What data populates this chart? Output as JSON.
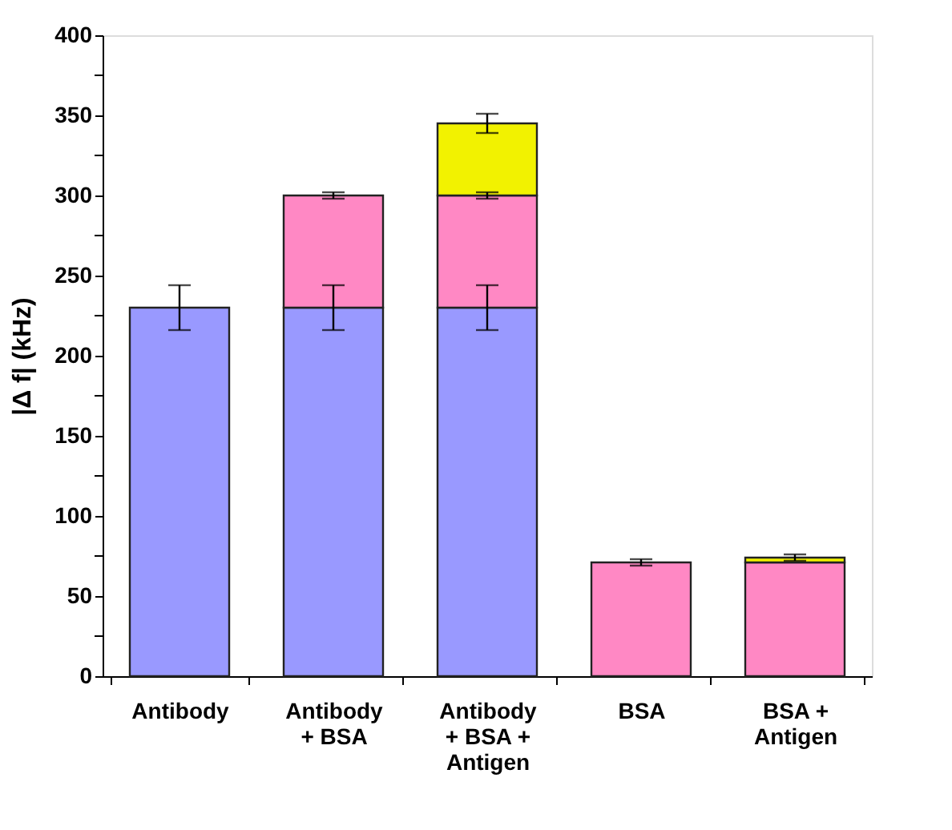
{
  "chart_data": {
    "type": "bar",
    "stacked": true,
    "ylabel": "|Δ f| (kHz)",
    "categories": [
      "Antibody",
      "Antibody\n+ BSA",
      "Antibody\n+ BSA +\nAntigen",
      "BSA",
      "BSA +\nAntigen"
    ],
    "series": [
      {
        "color": "#9999ff",
        "values": [
          230,
          230,
          230,
          null,
          null
        ],
        "errors": [
          14,
          14,
          14,
          null,
          null
        ]
      },
      {
        "color": "#ff88c4",
        "values": [
          null,
          70,
          70,
          71,
          71
        ],
        "errors": [
          null,
          2,
          2,
          2,
          null
        ]
      },
      {
        "color": "#f2f200",
        "values": [
          null,
          null,
          45,
          null,
          3
        ],
        "errors": [
          null,
          null,
          6,
          null,
          2
        ]
      }
    ],
    "ylim": [
      0,
      400
    ],
    "yticks": [
      0,
      {
        "value": 25,
        "label": null
      },
      50,
      {
        "value": 75,
        "label": null
      },
      100,
      {
        "value": 125,
        "label": null
      },
      150,
      {
        "value": 175,
        "label": null
      },
      200,
      {
        "value": 225,
        "label": null
      },
      250,
      {
        "value": 275,
        "label": null
      },
      300,
      {
        "value": 325,
        "label": null
      },
      350,
      {
        "value": 375,
        "label": null
      },
      400
    ],
    "grid": false
  }
}
